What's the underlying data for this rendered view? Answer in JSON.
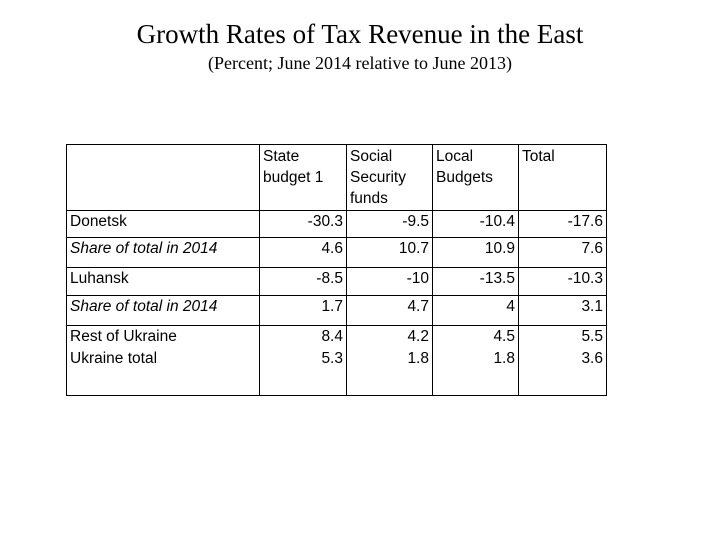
{
  "title": "Growth Rates of Tax Revenue in the East",
  "subtitle": "(Percent; June 2014 relative to June 2013)",
  "table": {
    "headers": [
      {
        "lines": []
      },
      {
        "lines": [
          "State",
          "budget 1"
        ]
      },
      {
        "lines": [
          "Social",
          "Security",
          "funds"
        ]
      },
      {
        "lines": [
          "Local",
          "Budgets"
        ]
      },
      {
        "lines": [
          "Total"
        ]
      }
    ],
    "rows": [
      {
        "label": "Donetsk",
        "values": [
          "-30.3",
          "-9.5",
          "-10.4",
          "-17.6"
        ]
      },
      {
        "label": "Share of total in 2014",
        "values": [
          "4.6",
          "10.7",
          "10.9",
          "7.6"
        ]
      },
      {
        "label": "Luhansk",
        "values": [
          "-8.5",
          "-10",
          "-13.5",
          "-10.3"
        ]
      },
      {
        "label": "Share of total in 2014",
        "values": [
          "1.7",
          "4.7",
          "4",
          "3.1"
        ]
      },
      {
        "label": "Rest of Ukraine",
        "values": [
          "8.4",
          "4.2",
          "4.5",
          "5.5"
        ]
      },
      {
        "label": "Ukraine total",
        "values": [
          "5.3",
          "1.8",
          "1.8",
          "3.6"
        ]
      }
    ]
  }
}
